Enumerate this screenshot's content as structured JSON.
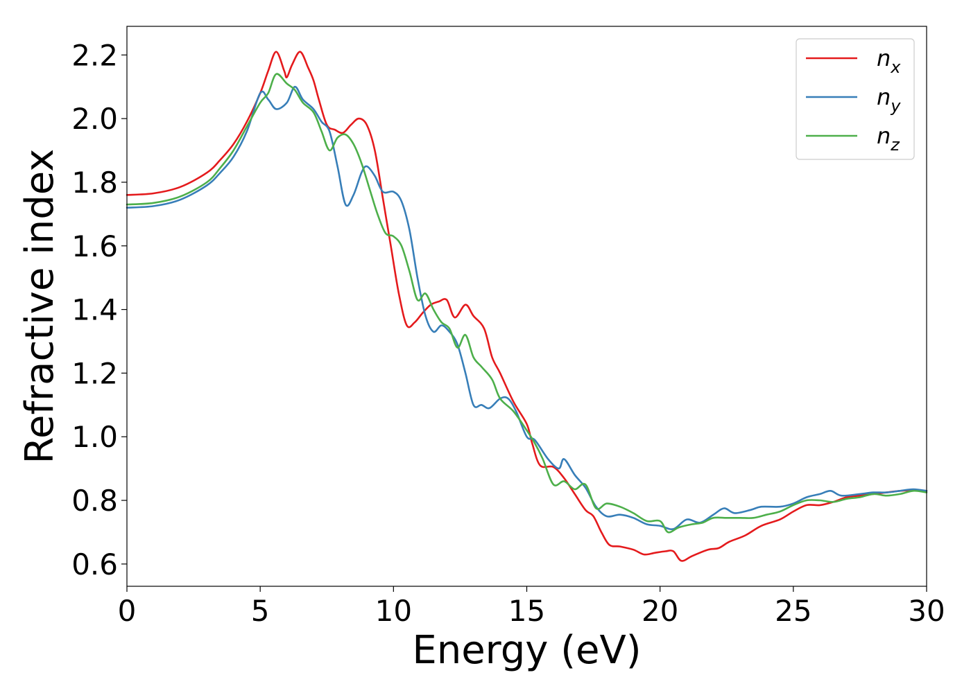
{
  "chart_data": {
    "type": "line",
    "xlabel": "Energy (eV)",
    "ylabel": "Refractive index",
    "xlim": [
      0,
      30
    ],
    "ylim": [
      0.53,
      2.29
    ],
    "x_ticks": [
      0,
      5,
      10,
      15,
      20,
      25,
      30
    ],
    "y_ticks": [
      0.6,
      0.8,
      1.0,
      1.2,
      1.4,
      1.6,
      1.8,
      2.0,
      2.2
    ],
    "x_tick_labels": [
      "0",
      "5",
      "10",
      "15",
      "20",
      "25",
      "30"
    ],
    "y_tick_labels": [
      "0.6",
      "0.8",
      "1.0",
      "1.2",
      "1.4",
      "1.6",
      "1.8",
      "2.0",
      "2.2"
    ],
    "grid": false,
    "legend_position": "top-right",
    "series": [
      {
        "name": "n",
        "subscript": "x",
        "color": "#e41a1c",
        "points": [
          [
            0,
            1.76
          ],
          [
            1,
            1.765
          ],
          [
            2,
            1.785
          ],
          [
            3,
            1.83
          ],
          [
            3.5,
            1.87
          ],
          [
            4,
            1.92
          ],
          [
            4.5,
            1.99
          ],
          [
            5,
            2.08
          ],
          [
            5.3,
            2.15
          ],
          [
            5.6,
            2.21
          ],
          [
            5.9,
            2.15
          ],
          [
            6.0,
            2.13
          ],
          [
            6.2,
            2.17
          ],
          [
            6.5,
            2.21
          ],
          [
            6.8,
            2.16
          ],
          [
            7.0,
            2.12
          ],
          [
            7.2,
            2.06
          ],
          [
            7.5,
            1.98
          ],
          [
            7.8,
            1.965
          ],
          [
            8.1,
            1.955
          ],
          [
            8.4,
            1.98
          ],
          [
            8.7,
            2.0
          ],
          [
            9.0,
            1.98
          ],
          [
            9.3,
            1.9
          ],
          [
            9.6,
            1.75
          ],
          [
            9.9,
            1.6
          ],
          [
            10.2,
            1.45
          ],
          [
            10.5,
            1.35
          ],
          [
            10.8,
            1.36
          ],
          [
            11.1,
            1.39
          ],
          [
            11.4,
            1.415
          ],
          [
            11.7,
            1.425
          ],
          [
            12.0,
            1.43
          ],
          [
            12.3,
            1.375
          ],
          [
            12.7,
            1.415
          ],
          [
            13.0,
            1.38
          ],
          [
            13.4,
            1.34
          ],
          [
            13.7,
            1.25
          ],
          [
            14.0,
            1.2
          ],
          [
            14.5,
            1.11
          ],
          [
            15.0,
            1.04
          ],
          [
            15.2,
            0.98
          ],
          [
            15.5,
            0.91
          ],
          [
            16.0,
            0.905
          ],
          [
            16.4,
            0.87
          ],
          [
            16.8,
            0.82
          ],
          [
            17.2,
            0.77
          ],
          [
            17.5,
            0.75
          ],
          [
            17.8,
            0.7
          ],
          [
            18.1,
            0.66
          ],
          [
            18.5,
            0.655
          ],
          [
            19.0,
            0.645
          ],
          [
            19.4,
            0.63
          ],
          [
            19.8,
            0.635
          ],
          [
            20.2,
            0.64
          ],
          [
            20.5,
            0.64
          ],
          [
            20.8,
            0.61
          ],
          [
            21.2,
            0.625
          ],
          [
            21.8,
            0.645
          ],
          [
            22.2,
            0.65
          ],
          [
            22.6,
            0.67
          ],
          [
            23.2,
            0.69
          ],
          [
            23.8,
            0.72
          ],
          [
            24.5,
            0.74
          ],
          [
            25.0,
            0.765
          ],
          [
            25.5,
            0.785
          ],
          [
            26.0,
            0.785
          ],
          [
            26.5,
            0.795
          ],
          [
            27.0,
            0.81
          ],
          [
            27.5,
            0.815
          ],
          [
            28.0,
            0.82
          ],
          [
            28.5,
            0.825
          ],
          [
            29.0,
            0.83
          ],
          [
            29.5,
            0.832
          ],
          [
            30,
            0.83
          ]
        ]
      },
      {
        "name": "n",
        "subscript": "y",
        "color": "#377eb8",
        "points": [
          [
            0,
            1.72
          ],
          [
            1,
            1.725
          ],
          [
            2,
            1.745
          ],
          [
            3,
            1.79
          ],
          [
            3.5,
            1.83
          ],
          [
            4,
            1.88
          ],
          [
            4.5,
            1.96
          ],
          [
            5.0,
            2.08
          ],
          [
            5.3,
            2.06
          ],
          [
            5.6,
            2.03
          ],
          [
            6.0,
            2.05
          ],
          [
            6.3,
            2.1
          ],
          [
            6.6,
            2.06
          ],
          [
            7.0,
            2.03
          ],
          [
            7.3,
            1.99
          ],
          [
            7.6,
            1.96
          ],
          [
            7.9,
            1.85
          ],
          [
            8.2,
            1.73
          ],
          [
            8.5,
            1.76
          ],
          [
            8.8,
            1.83
          ],
          [
            9.0,
            1.85
          ],
          [
            9.3,
            1.82
          ],
          [
            9.6,
            1.77
          ],
          [
            10.0,
            1.77
          ],
          [
            10.3,
            1.74
          ],
          [
            10.6,
            1.65
          ],
          [
            10.9,
            1.5
          ],
          [
            11.2,
            1.38
          ],
          [
            11.5,
            1.33
          ],
          [
            11.8,
            1.35
          ],
          [
            12.1,
            1.33
          ],
          [
            12.4,
            1.29
          ],
          [
            12.7,
            1.2
          ],
          [
            13.0,
            1.1
          ],
          [
            13.3,
            1.1
          ],
          [
            13.6,
            1.09
          ],
          [
            14.0,
            1.12
          ],
          [
            14.3,
            1.12
          ],
          [
            14.6,
            1.08
          ],
          [
            15.0,
            1.0
          ],
          [
            15.3,
            0.99
          ],
          [
            15.8,
            0.93
          ],
          [
            16.2,
            0.9
          ],
          [
            16.4,
            0.93
          ],
          [
            16.8,
            0.88
          ],
          [
            17.2,
            0.84
          ],
          [
            17.6,
            0.78
          ],
          [
            18.0,
            0.75
          ],
          [
            18.5,
            0.755
          ],
          [
            19.0,
            0.745
          ],
          [
            19.5,
            0.725
          ],
          [
            20.0,
            0.72
          ],
          [
            20.5,
            0.71
          ],
          [
            21.0,
            0.74
          ],
          [
            21.5,
            0.73
          ],
          [
            22.0,
            0.755
          ],
          [
            22.4,
            0.775
          ],
          [
            22.8,
            0.76
          ],
          [
            23.4,
            0.77
          ],
          [
            23.8,
            0.78
          ],
          [
            24.5,
            0.78
          ],
          [
            25.0,
            0.79
          ],
          [
            25.5,
            0.81
          ],
          [
            26.0,
            0.82
          ],
          [
            26.4,
            0.83
          ],
          [
            26.8,
            0.815
          ],
          [
            27.5,
            0.82
          ],
          [
            28.0,
            0.825
          ],
          [
            28.5,
            0.825
          ],
          [
            29.0,
            0.83
          ],
          [
            29.5,
            0.835
          ],
          [
            30,
            0.83
          ]
        ]
      },
      {
        "name": "n",
        "subscript": "z",
        "color": "#4daf4a",
        "points": [
          [
            0,
            1.73
          ],
          [
            1,
            1.735
          ],
          [
            2,
            1.755
          ],
          [
            3,
            1.8
          ],
          [
            3.5,
            1.845
          ],
          [
            4,
            1.9
          ],
          [
            4.5,
            1.975
          ],
          [
            5.0,
            2.05
          ],
          [
            5.3,
            2.08
          ],
          [
            5.6,
            2.14
          ],
          [
            6.0,
            2.11
          ],
          [
            6.3,
            2.09
          ],
          [
            6.6,
            2.05
          ],
          [
            7.0,
            2.02
          ],
          [
            7.3,
            1.96
          ],
          [
            7.6,
            1.9
          ],
          [
            7.9,
            1.94
          ],
          [
            8.2,
            1.95
          ],
          [
            8.5,
            1.92
          ],
          [
            8.8,
            1.86
          ],
          [
            9.1,
            1.78
          ],
          [
            9.4,
            1.7
          ],
          [
            9.7,
            1.64
          ],
          [
            10.0,
            1.63
          ],
          [
            10.3,
            1.6
          ],
          [
            10.6,
            1.52
          ],
          [
            10.9,
            1.43
          ],
          [
            11.2,
            1.45
          ],
          [
            11.5,
            1.4
          ],
          [
            11.8,
            1.36
          ],
          [
            12.1,
            1.34
          ],
          [
            12.4,
            1.28
          ],
          [
            12.7,
            1.32
          ],
          [
            13.0,
            1.25
          ],
          [
            13.3,
            1.22
          ],
          [
            13.7,
            1.18
          ],
          [
            14.0,
            1.12
          ],
          [
            14.5,
            1.08
          ],
          [
            15.0,
            1.02
          ],
          [
            15.3,
            0.98
          ],
          [
            15.6,
            0.93
          ],
          [
            16.0,
            0.85
          ],
          [
            16.4,
            0.86
          ],
          [
            16.8,
            0.835
          ],
          [
            17.2,
            0.85
          ],
          [
            17.6,
            0.775
          ],
          [
            18.0,
            0.79
          ],
          [
            18.5,
            0.78
          ],
          [
            19.0,
            0.76
          ],
          [
            19.5,
            0.735
          ],
          [
            20.0,
            0.735
          ],
          [
            20.3,
            0.7
          ],
          [
            20.7,
            0.715
          ],
          [
            21.2,
            0.725
          ],
          [
            21.6,
            0.73
          ],
          [
            22.0,
            0.745
          ],
          [
            22.5,
            0.745
          ],
          [
            23.0,
            0.745
          ],
          [
            23.5,
            0.745
          ],
          [
            24.0,
            0.755
          ],
          [
            24.5,
            0.765
          ],
          [
            25.0,
            0.785
          ],
          [
            25.5,
            0.8
          ],
          [
            26.0,
            0.8
          ],
          [
            26.5,
            0.795
          ],
          [
            27.0,
            0.805
          ],
          [
            27.5,
            0.81
          ],
          [
            28.0,
            0.82
          ],
          [
            28.5,
            0.815
          ],
          [
            29.0,
            0.82
          ],
          [
            29.5,
            0.83
          ],
          [
            30,
            0.825
          ]
        ]
      }
    ]
  }
}
